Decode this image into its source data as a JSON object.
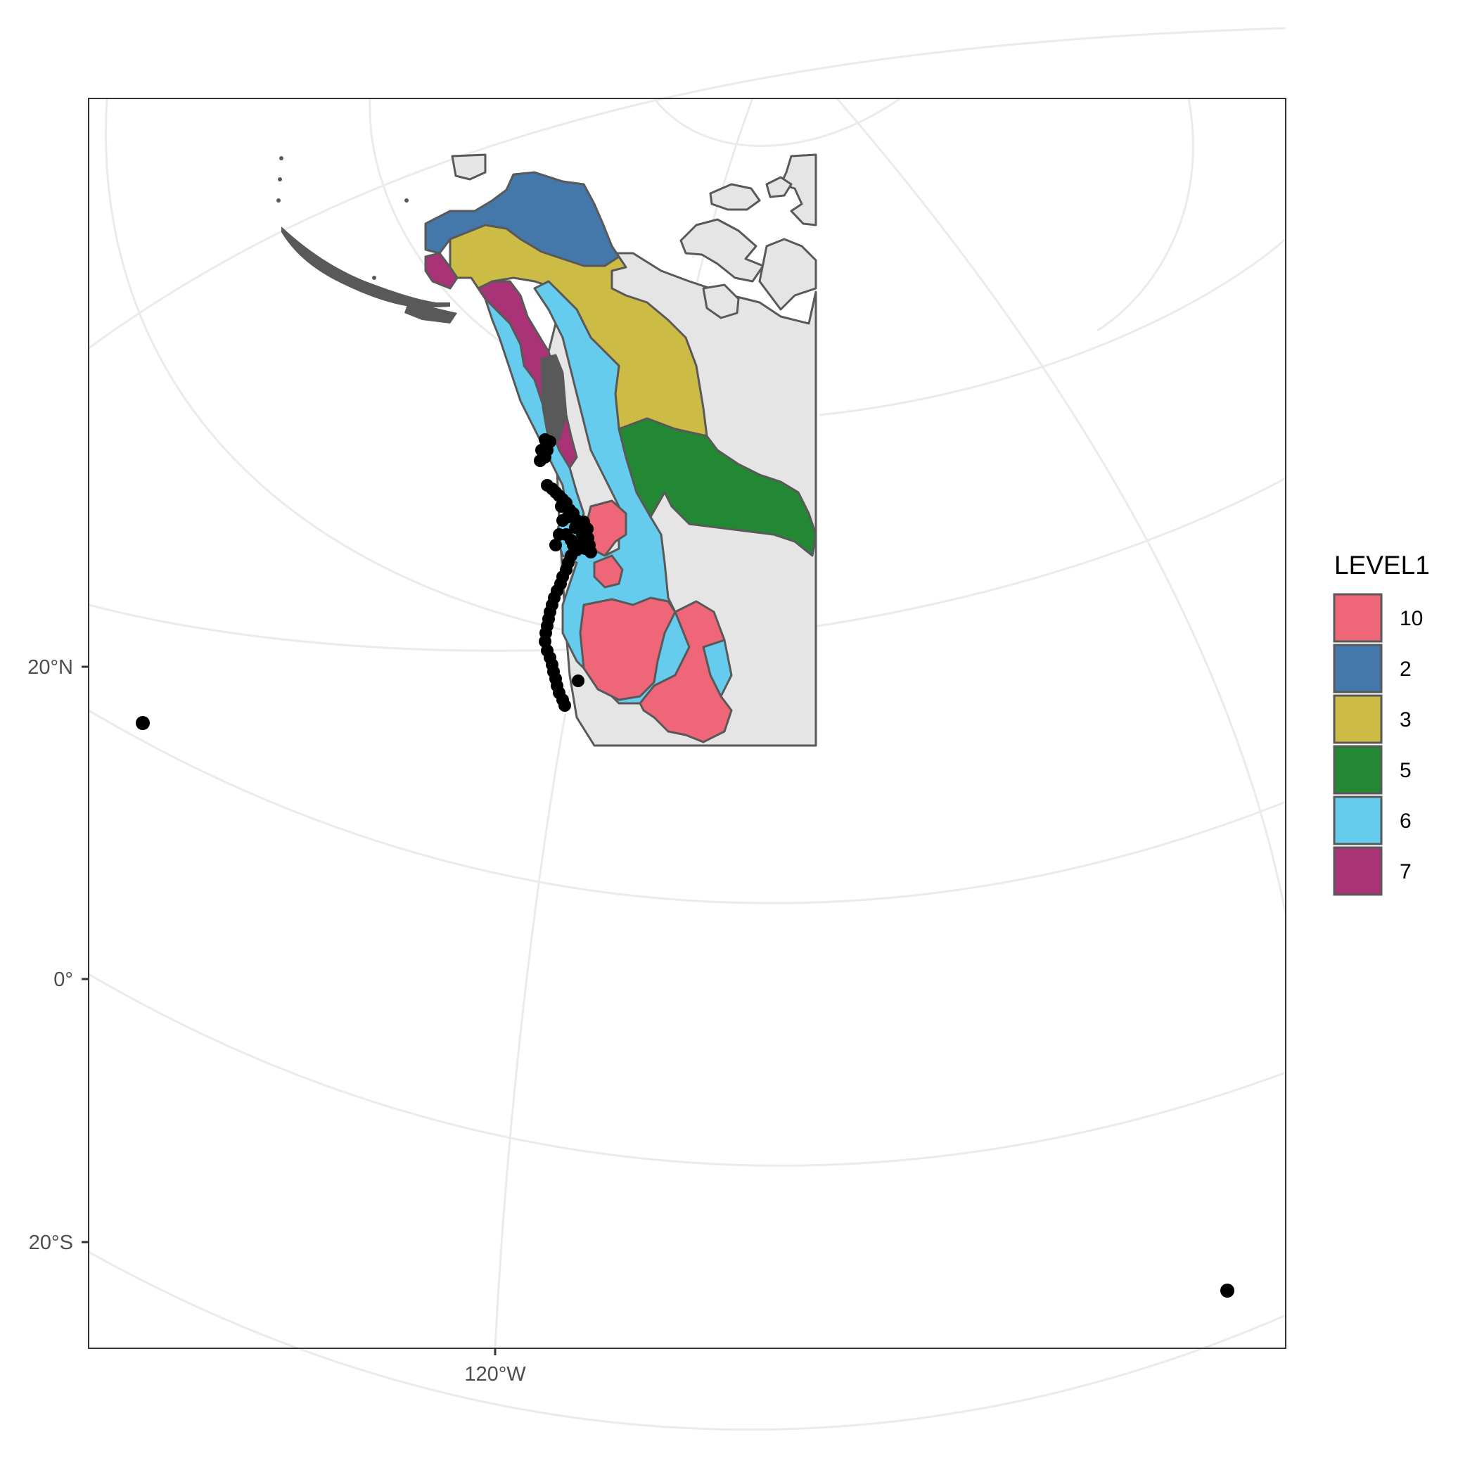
{
  "axes": {
    "y_ticks": [
      {
        "label": "20°N",
        "lat": 20
      },
      {
        "label": "0°",
        "lat": 0
      },
      {
        "label": "20°S",
        "lat": -20
      }
    ],
    "x_ticks": [
      {
        "label": "120°W",
        "lon": -120
      }
    ]
  },
  "legend": {
    "title": "LEVEL1",
    "items": [
      {
        "label": "10",
        "color": "#EE6677"
      },
      {
        "label": "2",
        "color": "#4477AA"
      },
      {
        "label": "3",
        "color": "#CCBB44"
      },
      {
        "label": "5",
        "color": "#228833"
      },
      {
        "label": "6",
        "color": "#66CCEE"
      },
      {
        "label": "7",
        "color": "#AA3377"
      }
    ]
  },
  "colors": {
    "land": "#e5e5e5",
    "border": "#595959",
    "points": "#000000",
    "graticule": "#ebebeb"
  }
}
